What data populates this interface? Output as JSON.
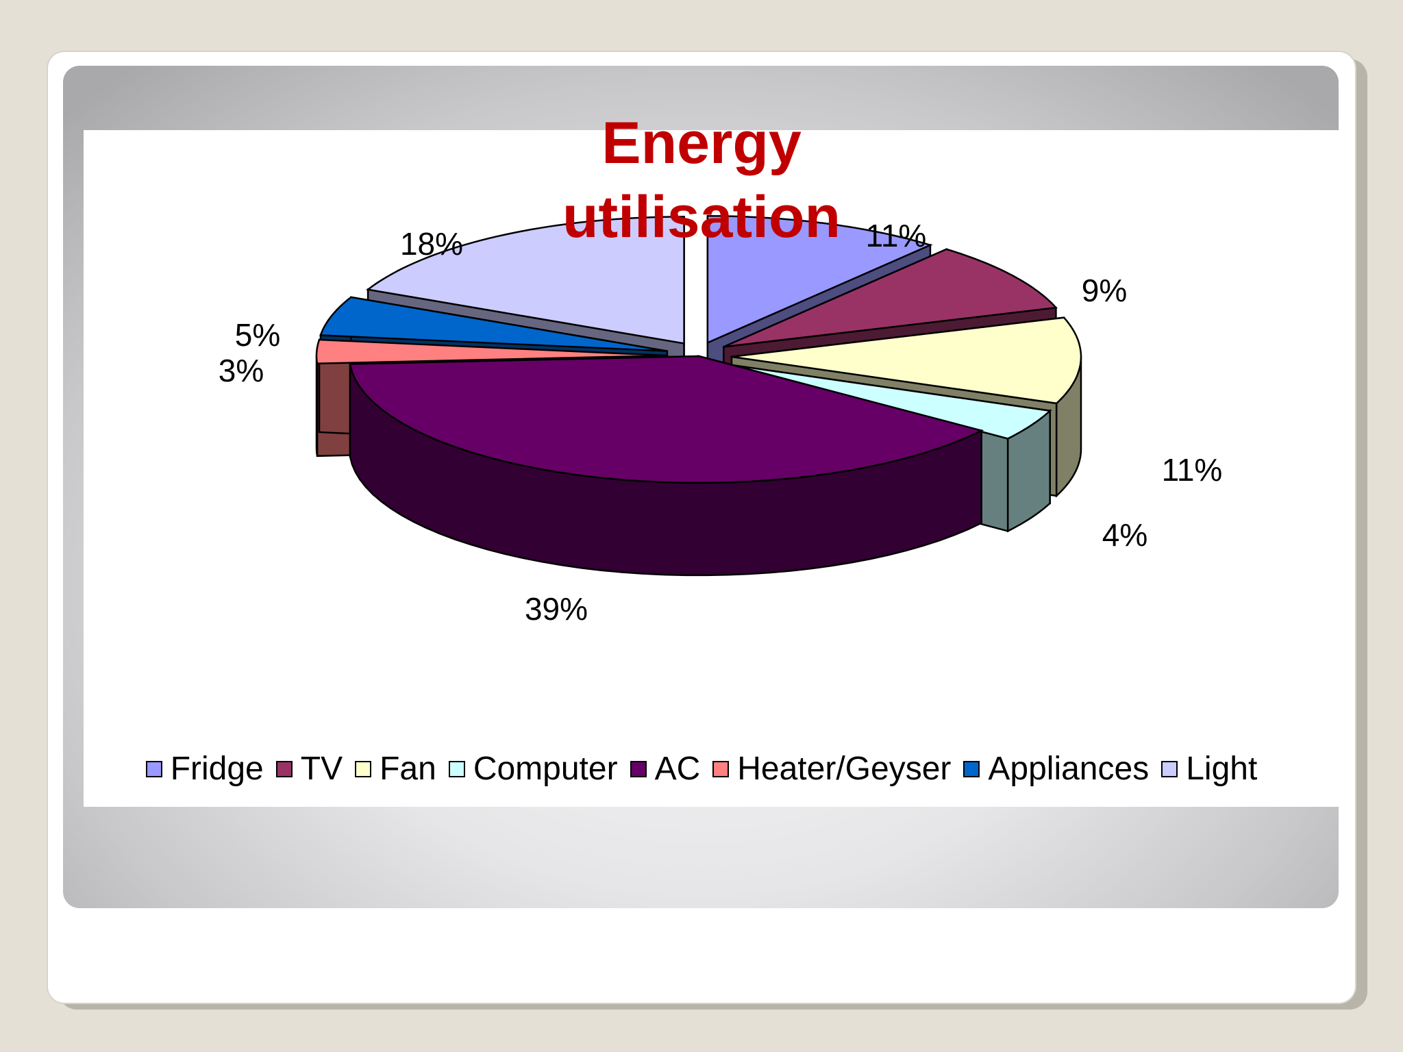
{
  "chart_data": {
    "type": "pie",
    "title_lines": [
      "Energy",
      "utilisation"
    ],
    "categories": [
      "Fridge",
      "TV",
      "Fan",
      "Computer",
      "AC",
      "Heater/Geyser",
      "Appliances",
      "Light"
    ],
    "values": [
      11,
      9,
      11,
      4,
      39,
      3,
      5,
      18
    ],
    "labels": [
      "11%",
      "9%",
      "11%",
      "4%",
      "39%",
      "3%",
      "5%",
      "18%"
    ],
    "colors": [
      "#9999ff",
      "#993366",
      "#ffffcc",
      "#ccffff",
      "#660066",
      "#ff8080",
      "#0066cc",
      "#ccccff"
    ],
    "style": "3d-exploded",
    "legend_position": "bottom"
  }
}
